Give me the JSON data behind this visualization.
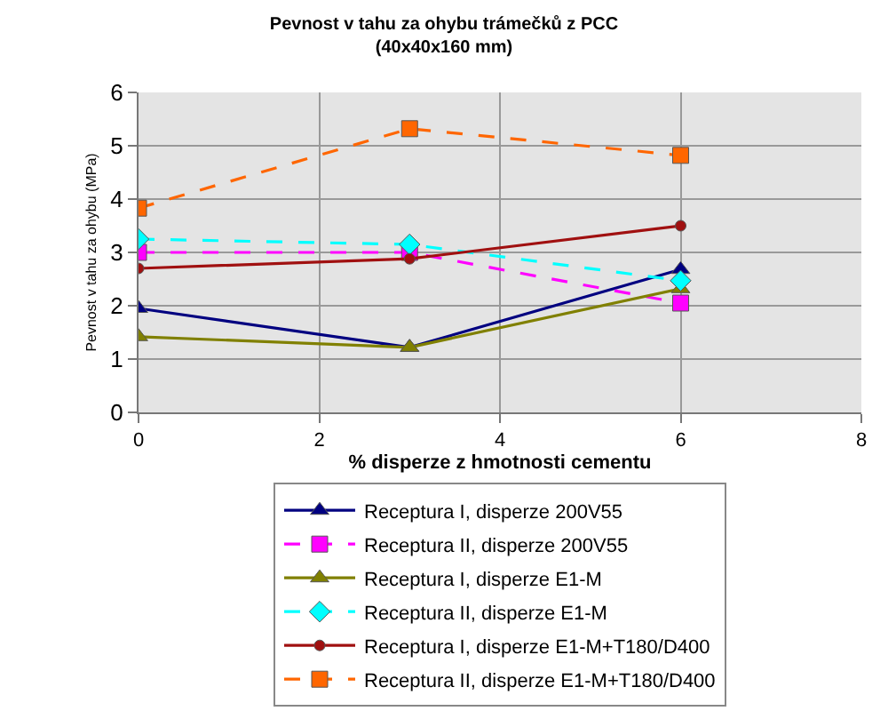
{
  "chart_data": {
    "type": "line",
    "title": "Pevnost v tahu za ohybu trámečků z PCC\n(40x40x160 mm)",
    "xlabel": "% disperze z hmotnosti cementu",
    "ylabel": "Pevnost v tahu za ohybu (MPa)",
    "x": [
      0,
      3,
      6
    ],
    "xlim": [
      0,
      8
    ],
    "xticks": [
      0,
      2,
      4,
      6,
      8
    ],
    "ylim": [
      0,
      6
    ],
    "yticks": [
      0,
      1,
      2,
      3,
      4,
      5,
      6
    ],
    "grid": true,
    "legend": "bottom",
    "series": [
      {
        "name": "Receptura I, disperze 200V55",
        "color": "#000080",
        "marker": "triangle",
        "line_style": "solid",
        "values": [
          1.95,
          1.22,
          2.68
        ]
      },
      {
        "name": "Receptura II, disperze 200V55",
        "color": "#ff00ff",
        "marker": "square",
        "line_style": "dashed",
        "values": [
          3.0,
          3.0,
          2.05
        ]
      },
      {
        "name": "Receptura I, disperze E1-M",
        "color": "#808000",
        "marker": "triangle",
        "line_style": "solid",
        "values": [
          1.42,
          1.22,
          2.32
        ]
      },
      {
        "name": "Receptura II, disperze E1-M",
        "color": "#00ffff",
        "marker": "diamond",
        "line_style": "dashed",
        "values": [
          3.25,
          3.15,
          2.47
        ]
      },
      {
        "name": "Receptura I, disperze E1-M+T180/D400",
        "color": "#a01010",
        "marker": "circle",
        "line_style": "solid",
        "values": [
          2.7,
          2.88,
          3.5
        ]
      },
      {
        "name": "Receptura II, disperze E1-M+T180/D400",
        "color": "#ff6600",
        "marker": "square",
        "line_style": "dashed",
        "values": [
          3.83,
          5.32,
          4.82
        ]
      }
    ]
  }
}
